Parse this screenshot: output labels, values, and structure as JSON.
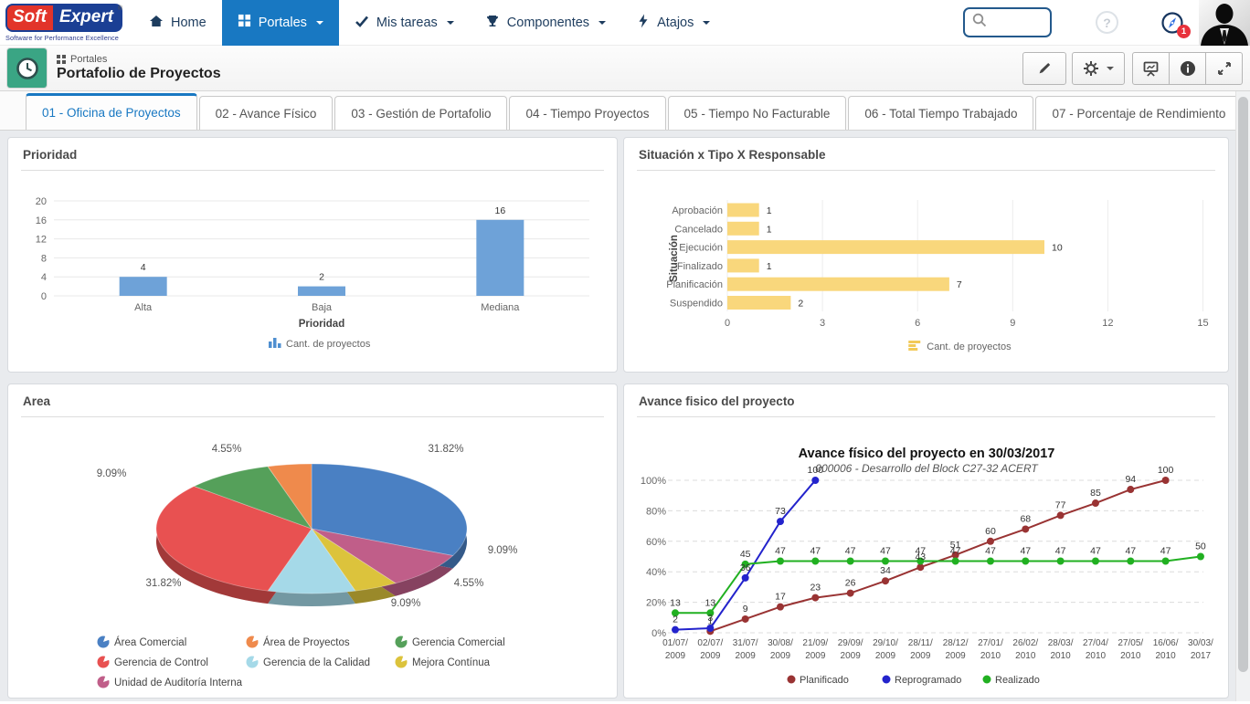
{
  "navbar": {
    "logo": {
      "word1": "Soft",
      "word2": "Expert",
      "registered": "®",
      "tagline": "Software for Performance Excellence"
    },
    "items": [
      {
        "label": "Home",
        "icon": "home-icon",
        "active": false,
        "caret": false
      },
      {
        "label": "Portales",
        "icon": "portals-grid-icon",
        "active": true,
        "caret": true
      },
      {
        "label": "Mis tareas",
        "icon": "check-icon",
        "active": false,
        "caret": true
      },
      {
        "label": "Componentes",
        "icon": "trophy-icon",
        "active": false,
        "caret": true
      },
      {
        "label": "Atajos",
        "icon": "lightning-icon",
        "active": false,
        "caret": true
      }
    ],
    "search_value": "",
    "help_glyph": "?",
    "notification_count": "1",
    "accent_color": "#1878c2"
  },
  "header": {
    "breadcrumb": "Portales",
    "title": "Portafolio de Proyectos",
    "actions": [
      "edit-pencil-icon",
      "settings-gear-icon",
      "presentation-icon",
      "info-icon",
      "expand-icon"
    ]
  },
  "tabbar": {
    "tabs": [
      {
        "label": "01 - Oficina de Proyectos",
        "active": true
      },
      {
        "label": "02 - Avance Físico",
        "active": false
      },
      {
        "label": "03 - Gestión de Portafolio",
        "active": false
      },
      {
        "label": "04 - Tiempo Proyectos",
        "active": false
      },
      {
        "label": "05 - Tiempo No Facturable",
        "active": false
      },
      {
        "label": "06 - Total Tiempo Trabajado",
        "active": false
      },
      {
        "label": "07 - Porcentaje de Rendimiento",
        "active": false
      }
    ],
    "add_label": "+"
  },
  "chart_data": [
    {
      "type": "bar",
      "panel_title": "Prioridad",
      "categories": [
        "Alta",
        "Baja",
        "Mediana"
      ],
      "values": [
        4,
        2,
        16
      ],
      "xlabel": "Prioridad",
      "ylim": [
        0,
        20
      ],
      "yticks": [
        0,
        4,
        8,
        12,
        16,
        20
      ],
      "legend": "Cant. de proyectos",
      "bar_color": "#6ea2d8",
      "grid": true
    },
    {
      "type": "bar-horizontal",
      "panel_title": "Situación x Tipo X Responsable",
      "categories": [
        "Aprobación",
        "Cancelado",
        "Ejecución",
        "Finalizado",
        "Planificación",
        "Suspendido"
      ],
      "values": [
        1,
        1,
        10,
        1,
        7,
        2
      ],
      "ylabel": "Situación",
      "xlim": [
        0,
        15
      ],
      "xticks": [
        0,
        3,
        6,
        9,
        12,
        15
      ],
      "legend": "Cant. de proyectos",
      "bar_color": "#f9d77c",
      "grid": true
    },
    {
      "type": "pie",
      "panel_title": "Area",
      "slices": [
        {
          "label": "Área Comercial",
          "value": 31.82,
          "display": "31.82%",
          "color": "#4a80c3"
        },
        {
          "label": "Área de Proyectos",
          "value": 4.55,
          "display": "4.55%",
          "color": "#ef8a4c"
        },
        {
          "label": "Gerencia Comercial",
          "value": 9.09,
          "display": "9.09%",
          "color": "#55a05a"
        },
        {
          "label": "Gerencia de Control",
          "value": 31.82,
          "display": "31.82%",
          "color": "#e85151"
        },
        {
          "label": "Gerencia de la Calidad",
          "value": 9.09,
          "display": "9.09%",
          "color": "#a5d9e8"
        },
        {
          "label": "Mejora Contínua",
          "value": 4.55,
          "display": "4.55%",
          "color": "#dcc33c"
        },
        {
          "label": "Unidad de Auditoría Interna",
          "value": 9.09,
          "display": "9.09%",
          "color": "#c05e89"
        }
      ],
      "clockwise_order": [
        0,
        6,
        5,
        4,
        3,
        2,
        1
      ]
    },
    {
      "type": "line",
      "panel_title": "Avance fisico del proyecto",
      "title": "Avance físico del proyecto en 30/03/2017",
      "subtitle": "000006 - Desarrollo del Block C27-32 ACERT",
      "x": [
        "01/07/2009",
        "02/07/2009",
        "31/07/2009",
        "30/08/2009",
        "21/09/2009",
        "29/09/2009",
        "29/10/2009",
        "28/11/2009",
        "28/12/2009",
        "27/01/2010",
        "26/02/2010",
        "28/03/2010",
        "27/04/2010",
        "27/05/2010",
        "16/06/2010",
        "30/03/2017"
      ],
      "ylim": [
        0,
        100
      ],
      "yticks": [
        "0%",
        "20%",
        "40%",
        "60%",
        "80%",
        "100%"
      ],
      "series": [
        {
          "name": "Planificado",
          "color": "#993333",
          "values": [
            null,
            1,
            9,
            17,
            23,
            26,
            34,
            43,
            51,
            60,
            68,
            77,
            85,
            94,
            100,
            null
          ]
        },
        {
          "name": "Reprogramado",
          "color": "#2323cc",
          "values": [
            2,
            3,
            36,
            73,
            100,
            null,
            null,
            null,
            null,
            null,
            null,
            null,
            null,
            null,
            null,
            null
          ]
        },
        {
          "name": "Realizado",
          "color": "#21b021",
          "values": [
            13,
            13,
            45,
            47,
            47,
            47,
            47,
            47,
            47,
            47,
            47,
            47,
            47,
            47,
            47,
            50
          ]
        }
      ]
    }
  ]
}
